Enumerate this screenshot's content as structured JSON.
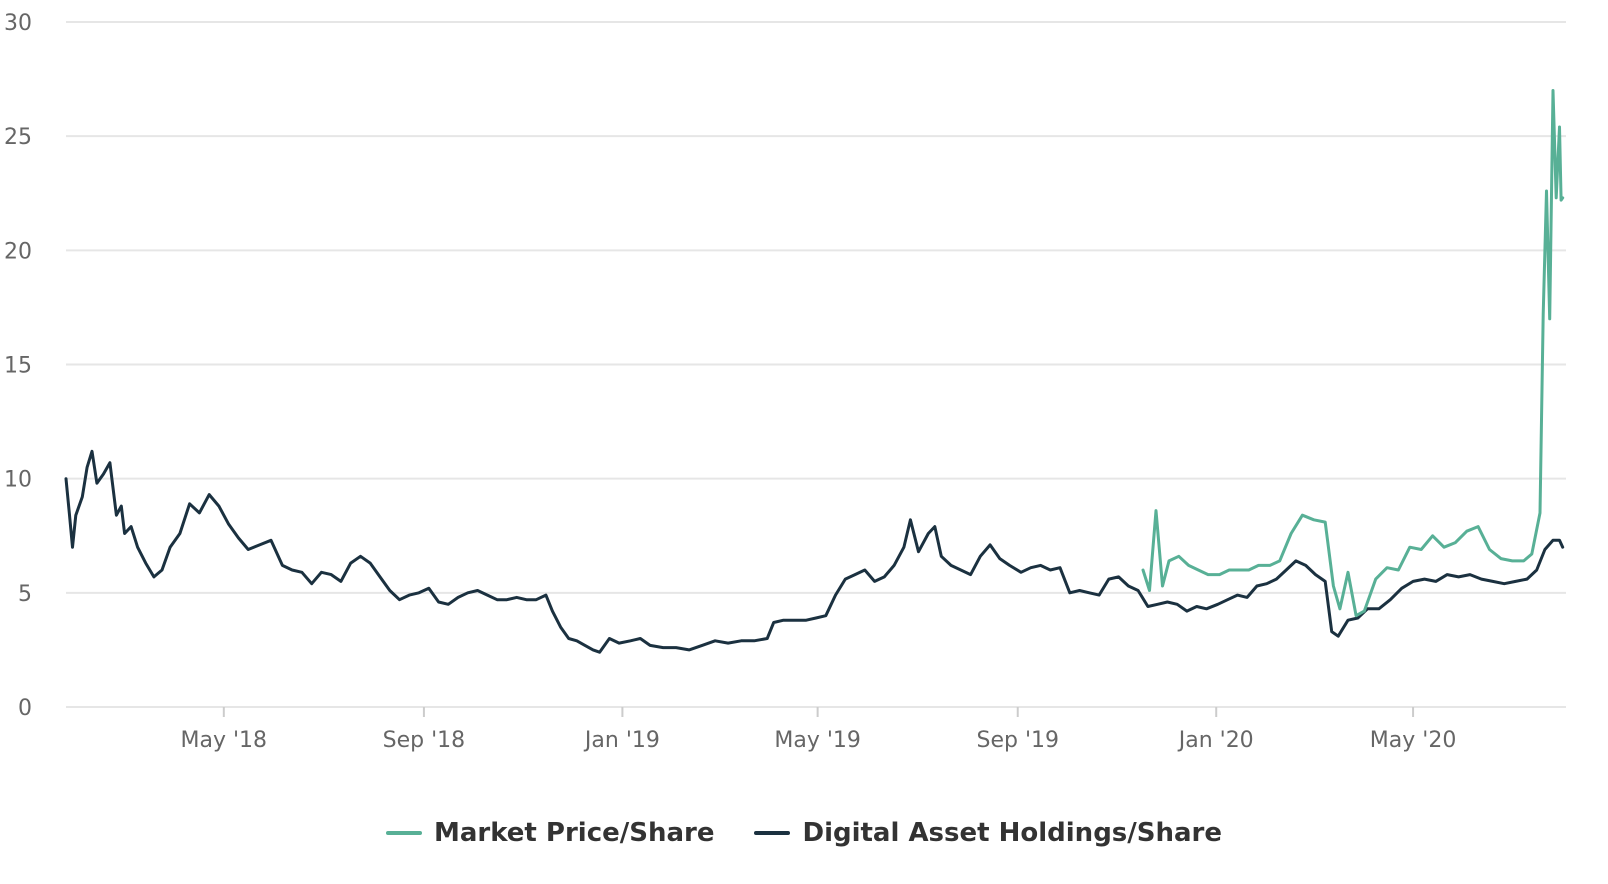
{
  "chart_data": {
    "type": "line",
    "title": "",
    "xlabel": "",
    "ylabel": "",
    "x_range": [
      "2018-01-24",
      "2020-08-03"
    ],
    "ylim": [
      0,
      30
    ],
    "y_ticks": [
      0,
      5,
      10,
      15,
      20,
      25,
      30
    ],
    "x_ticks": [
      {
        "date": "2018-05-01",
        "label": "May '18"
      },
      {
        "date": "2018-09-01",
        "label": "Sep '18"
      },
      {
        "date": "2019-01-01",
        "label": "Jan '19"
      },
      {
        "date": "2019-05-01",
        "label": "May '19"
      },
      {
        "date": "2019-09-01",
        "label": "Sep '19"
      },
      {
        "date": "2020-01-01",
        "label": "Jan '20"
      },
      {
        "date": "2020-05-01",
        "label": "May '20"
      }
    ],
    "grid": "horizontal",
    "legend_position": "bottom-center",
    "series": [
      {
        "name": "Market Price/Share",
        "color": "#58b096",
        "points": [
          [
            "2019-11-17",
            6.0
          ],
          [
            "2019-11-21",
            5.1
          ],
          [
            "2019-11-25",
            8.6
          ],
          [
            "2019-11-29",
            5.3
          ],
          [
            "2019-12-03",
            6.4
          ],
          [
            "2019-12-09",
            6.6
          ],
          [
            "2019-12-15",
            6.2
          ],
          [
            "2019-12-21",
            6.0
          ],
          [
            "2019-12-27",
            5.8
          ],
          [
            "2020-01-03",
            5.8
          ],
          [
            "2020-01-09",
            6.0
          ],
          [
            "2020-01-15",
            6.0
          ],
          [
            "2020-01-21",
            6.0
          ],
          [
            "2020-01-27",
            6.2
          ],
          [
            "2020-02-03",
            6.2
          ],
          [
            "2020-02-09",
            6.4
          ],
          [
            "2020-02-16",
            7.6
          ],
          [
            "2020-02-23",
            8.4
          ],
          [
            "2020-03-01",
            8.2
          ],
          [
            "2020-03-08",
            8.1
          ],
          [
            "2020-03-13",
            5.3
          ],
          [
            "2020-03-17",
            4.3
          ],
          [
            "2020-03-22",
            5.9
          ],
          [
            "2020-03-27",
            4.0
          ],
          [
            "2020-04-01",
            4.2
          ],
          [
            "2020-04-08",
            5.6
          ],
          [
            "2020-04-15",
            6.1
          ],
          [
            "2020-04-22",
            6.0
          ],
          [
            "2020-04-29",
            7.0
          ],
          [
            "2020-05-06",
            6.9
          ],
          [
            "2020-05-13",
            7.5
          ],
          [
            "2020-05-20",
            7.0
          ],
          [
            "2020-05-27",
            7.2
          ],
          [
            "2020-06-03",
            7.7
          ],
          [
            "2020-06-10",
            7.9
          ],
          [
            "2020-06-17",
            6.9
          ],
          [
            "2020-06-24",
            6.5
          ],
          [
            "2020-07-01",
            6.4
          ],
          [
            "2020-07-08",
            6.4
          ],
          [
            "2020-07-13",
            6.7
          ],
          [
            "2020-07-18",
            8.5
          ],
          [
            "2020-07-20",
            17.2
          ],
          [
            "2020-07-22",
            22.6
          ],
          [
            "2020-07-24",
            17.0
          ],
          [
            "2020-07-26",
            27.0
          ],
          [
            "2020-07-28",
            22.3
          ],
          [
            "2020-07-30",
            25.4
          ],
          [
            "2020-07-31",
            22.2
          ],
          [
            "2020-08-01",
            22.3
          ]
        ]
      },
      {
        "name": "Digital Asset Holdings/Share",
        "color": "#1b3140",
        "points": [
          [
            "2018-01-24",
            10.0
          ],
          [
            "2018-01-26",
            8.5
          ],
          [
            "2018-01-28",
            7.0
          ],
          [
            "2018-01-30",
            8.4
          ],
          [
            "2018-02-03",
            9.2
          ],
          [
            "2018-02-06",
            10.5
          ],
          [
            "2018-02-09",
            11.2
          ],
          [
            "2018-02-12",
            9.8
          ],
          [
            "2018-02-16",
            10.2
          ],
          [
            "2018-02-20",
            10.7
          ],
          [
            "2018-02-24",
            8.4
          ],
          [
            "2018-02-27",
            8.8
          ],
          [
            "2018-03-01",
            7.6
          ],
          [
            "2018-03-05",
            7.9
          ],
          [
            "2018-03-09",
            7.0
          ],
          [
            "2018-03-14",
            6.3
          ],
          [
            "2018-03-19",
            5.7
          ],
          [
            "2018-03-24",
            6.0
          ],
          [
            "2018-03-29",
            7.0
          ],
          [
            "2018-04-04",
            7.6
          ],
          [
            "2018-04-10",
            8.9
          ],
          [
            "2018-04-16",
            8.5
          ],
          [
            "2018-04-22",
            9.3
          ],
          [
            "2018-04-28",
            8.8
          ],
          [
            "2018-05-04",
            8.0
          ],
          [
            "2018-05-10",
            7.4
          ],
          [
            "2018-05-16",
            6.9
          ],
          [
            "2018-05-23",
            7.1
          ],
          [
            "2018-05-30",
            7.3
          ],
          [
            "2018-06-06",
            6.2
          ],
          [
            "2018-06-12",
            6.0
          ],
          [
            "2018-06-18",
            5.9
          ],
          [
            "2018-06-24",
            5.4
          ],
          [
            "2018-06-30",
            5.9
          ],
          [
            "2018-07-06",
            5.8
          ],
          [
            "2018-07-12",
            5.5
          ],
          [
            "2018-07-18",
            6.3
          ],
          [
            "2018-07-24",
            6.6
          ],
          [
            "2018-07-30",
            6.3
          ],
          [
            "2018-08-05",
            5.7
          ],
          [
            "2018-08-11",
            5.1
          ],
          [
            "2018-08-17",
            4.7
          ],
          [
            "2018-08-23",
            4.9
          ],
          [
            "2018-08-29",
            5.0
          ],
          [
            "2018-09-04",
            5.2
          ],
          [
            "2018-09-10",
            4.6
          ],
          [
            "2018-09-16",
            4.5
          ],
          [
            "2018-09-22",
            4.8
          ],
          [
            "2018-09-28",
            5.0
          ],
          [
            "2018-10-04",
            5.1
          ],
          [
            "2018-10-10",
            4.9
          ],
          [
            "2018-10-16",
            4.7
          ],
          [
            "2018-10-22",
            4.7
          ],
          [
            "2018-10-28",
            4.8
          ],
          [
            "2018-11-03",
            4.7
          ],
          [
            "2018-11-09",
            4.7
          ],
          [
            "2018-11-15",
            4.9
          ],
          [
            "2018-11-19",
            4.2
          ],
          [
            "2018-11-24",
            3.5
          ],
          [
            "2018-11-29",
            3.0
          ],
          [
            "2018-12-04",
            2.9
          ],
          [
            "2018-12-09",
            2.7
          ],
          [
            "2018-12-14",
            2.5
          ],
          [
            "2018-12-18",
            2.4
          ],
          [
            "2018-12-24",
            3.0
          ],
          [
            "2018-12-30",
            2.8
          ],
          [
            "2019-01-06",
            2.9
          ],
          [
            "2019-01-12",
            3.0
          ],
          [
            "2019-01-18",
            2.7
          ],
          [
            "2019-01-26",
            2.6
          ],
          [
            "2019-02-03",
            2.6
          ],
          [
            "2019-02-11",
            2.5
          ],
          [
            "2019-02-19",
            2.7
          ],
          [
            "2019-02-27",
            2.9
          ],
          [
            "2019-03-07",
            2.8
          ],
          [
            "2019-03-15",
            2.9
          ],
          [
            "2019-03-23",
            2.9
          ],
          [
            "2019-03-31",
            3.0
          ],
          [
            "2019-04-04",
            3.7
          ],
          [
            "2019-04-10",
            3.8
          ],
          [
            "2019-04-17",
            3.8
          ],
          [
            "2019-04-24",
            3.8
          ],
          [
            "2019-04-30",
            3.9
          ],
          [
            "2019-05-06",
            4.0
          ],
          [
            "2019-05-12",
            4.9
          ],
          [
            "2019-05-18",
            5.6
          ],
          [
            "2019-05-24",
            5.8
          ],
          [
            "2019-05-30",
            6.0
          ],
          [
            "2019-06-05",
            5.5
          ],
          [
            "2019-06-11",
            5.7
          ],
          [
            "2019-06-17",
            6.2
          ],
          [
            "2019-06-23",
            7.0
          ],
          [
            "2019-06-27",
            8.2
          ],
          [
            "2019-07-02",
            6.8
          ],
          [
            "2019-07-08",
            7.6
          ],
          [
            "2019-07-12",
            7.9
          ],
          [
            "2019-07-16",
            6.6
          ],
          [
            "2019-07-22",
            6.2
          ],
          [
            "2019-07-28",
            6.0
          ],
          [
            "2019-08-03",
            5.8
          ],
          [
            "2019-08-09",
            6.6
          ],
          [
            "2019-08-15",
            7.1
          ],
          [
            "2019-08-21",
            6.5
          ],
          [
            "2019-08-27",
            6.2
          ],
          [
            "2019-09-03",
            5.9
          ],
          [
            "2019-09-09",
            6.1
          ],
          [
            "2019-09-15",
            6.2
          ],
          [
            "2019-09-21",
            6.0
          ],
          [
            "2019-09-27",
            6.1
          ],
          [
            "2019-10-03",
            5.0
          ],
          [
            "2019-10-09",
            5.1
          ],
          [
            "2019-10-15",
            5.0
          ],
          [
            "2019-10-21",
            4.9
          ],
          [
            "2019-10-27",
            5.6
          ],
          [
            "2019-11-02",
            5.7
          ],
          [
            "2019-11-08",
            5.3
          ],
          [
            "2019-11-14",
            5.1
          ],
          [
            "2019-11-20",
            4.4
          ],
          [
            "2019-11-26",
            4.5
          ],
          [
            "2019-12-02",
            4.6
          ],
          [
            "2019-12-08",
            4.5
          ],
          [
            "2019-12-14",
            4.2
          ],
          [
            "2019-12-20",
            4.4
          ],
          [
            "2019-12-26",
            4.3
          ],
          [
            "2020-01-02",
            4.5
          ],
          [
            "2020-01-08",
            4.7
          ],
          [
            "2020-01-14",
            4.9
          ],
          [
            "2020-01-20",
            4.8
          ],
          [
            "2020-01-26",
            5.3
          ],
          [
            "2020-02-01",
            5.4
          ],
          [
            "2020-02-07",
            5.6
          ],
          [
            "2020-02-13",
            6.0
          ],
          [
            "2020-02-19",
            6.4
          ],
          [
            "2020-02-25",
            6.2
          ],
          [
            "2020-03-02",
            5.8
          ],
          [
            "2020-03-08",
            5.5
          ],
          [
            "2020-03-12",
            3.3
          ],
          [
            "2020-03-16",
            3.1
          ],
          [
            "2020-03-22",
            3.8
          ],
          [
            "2020-03-28",
            3.9
          ],
          [
            "2020-04-03",
            4.3
          ],
          [
            "2020-04-10",
            4.3
          ],
          [
            "2020-04-17",
            4.7
          ],
          [
            "2020-04-24",
            5.2
          ],
          [
            "2020-05-01",
            5.5
          ],
          [
            "2020-05-08",
            5.6
          ],
          [
            "2020-05-15",
            5.5
          ],
          [
            "2020-05-22",
            5.8
          ],
          [
            "2020-05-29",
            5.7
          ],
          [
            "2020-06-05",
            5.8
          ],
          [
            "2020-06-12",
            5.6
          ],
          [
            "2020-06-19",
            5.5
          ],
          [
            "2020-06-26",
            5.4
          ],
          [
            "2020-07-03",
            5.5
          ],
          [
            "2020-07-10",
            5.6
          ],
          [
            "2020-07-16",
            6.0
          ],
          [
            "2020-07-21",
            6.9
          ],
          [
            "2020-07-26",
            7.3
          ],
          [
            "2020-07-30",
            7.3
          ],
          [
            "2020-08-01",
            7.0
          ]
        ]
      }
    ]
  }
}
